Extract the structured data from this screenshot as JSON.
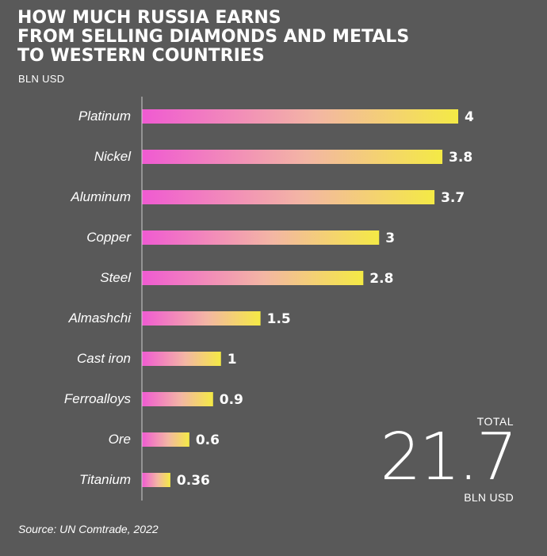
{
  "title": "HOW MUCH RUSSIA EARNS\nFROM SELLING DIAMONDS AND METALS\nTO WESTERN COUNTRIES",
  "unit": "BLN USD",
  "total": {
    "label": "TOTAL",
    "value": "21.7",
    "unit": "BLN USD"
  },
  "source": "Source: UN Comtrade, 2022",
  "colors": {
    "background": "#595959",
    "bar_start": "#f05ad2",
    "bar_end": "#f4ea45",
    "axis": "#cfcfcf"
  },
  "chart_data": {
    "type": "bar",
    "orientation": "horizontal",
    "title": "HOW MUCH RUSSIA EARNS FROM SELLING DIAMONDS AND METALS TO WESTERN COUNTRIES",
    "xlabel": "BLN USD",
    "ylabel": "",
    "categories": [
      "Platinum",
      "Nickel",
      "Aluminum",
      "Copper",
      "Steel",
      "Almashchi",
      "Cast iron",
      "Ferroalloys",
      "Ore",
      "Titanium"
    ],
    "values": [
      4,
      3.8,
      3.7,
      3,
      2.8,
      1.5,
      1,
      0.9,
      0.6,
      0.36
    ],
    "value_labels": [
      "4",
      "3.8",
      "3.7",
      "3",
      "2.8",
      "1.5",
      "1",
      "0.9",
      "0.6",
      "0.36"
    ],
    "xlim": [
      0,
      4
    ],
    "grid": false,
    "legend": "none"
  }
}
